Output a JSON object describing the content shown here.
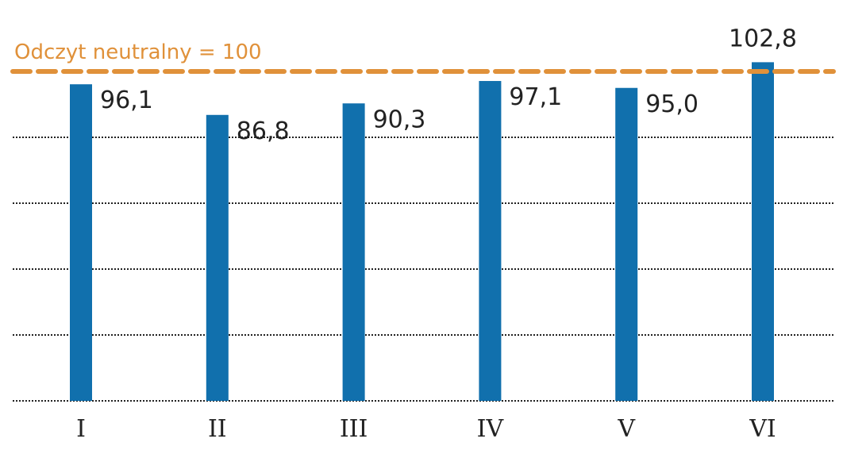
{
  "chart_data": {
    "type": "bar",
    "categories": [
      "I",
      "II",
      "III",
      "IV",
      "V",
      "VI"
    ],
    "values": [
      96.1,
      86.8,
      90.3,
      97.1,
      95.0,
      102.8
    ],
    "value_labels": [
      "96,1",
      "86,8",
      "90,3",
      "97,1",
      "95,0",
      "102,8"
    ],
    "ylim": [
      0,
      105
    ],
    "grid": true,
    "gridlines": [
      0,
      20,
      40,
      60,
      80,
      100
    ],
    "reference_line": {
      "value": 100,
      "label": "Odczyt neutralny = 100"
    },
    "title": "",
    "xlabel": "",
    "ylabel": ""
  },
  "colors": {
    "bar": "#1170ad",
    "reference_line": "#e0913a",
    "grid": "#222222"
  }
}
